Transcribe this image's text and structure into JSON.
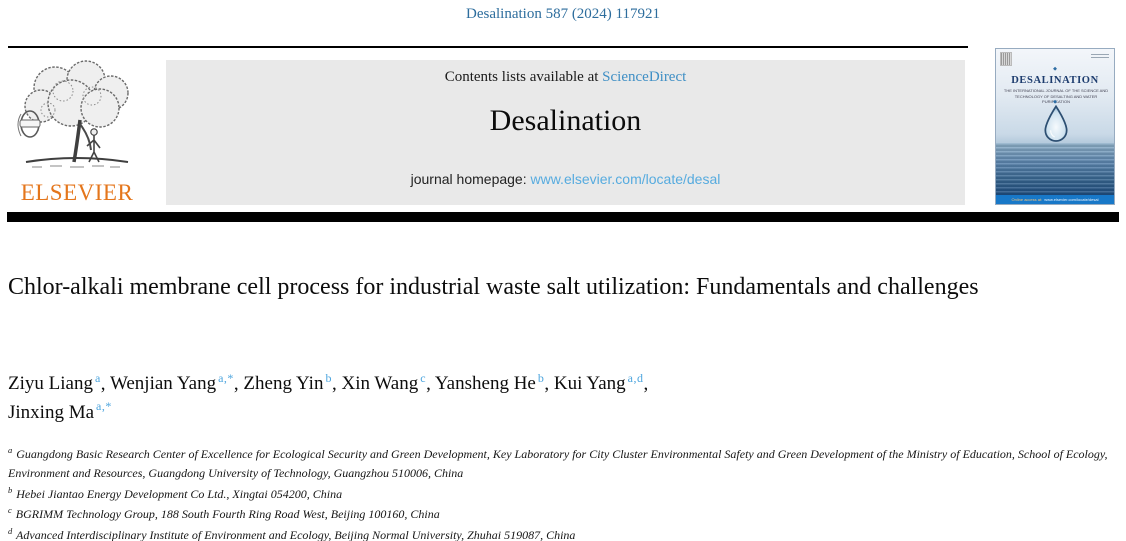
{
  "page": {
    "citation": "Desalination 587 (2024) 117921"
  },
  "header": {
    "contents_prefix": "Contents lists available at ",
    "sciencedirect_link": "ScienceDirect",
    "journal_title": "Desalination",
    "homepage_prefix": "journal homepage: ",
    "homepage_link": "www.elsevier.com/locate/desal",
    "elsevier_wordmark": "ELSEVIER"
  },
  "cover": {
    "title": "DESALINATION",
    "subtitle": "THE INTERNATIONAL JOURNAL OF THE SCIENCE AND TECHNOLOGY OF DESALTING AND WATER PURIFICATION",
    "footer_prefix": "Online access at:",
    "footer_link": "www.elsevier.com/locate/desal",
    "diamond_glyph": "◆"
  },
  "article": {
    "title": "Chlor-alkali membrane cell process for industrial waste salt utilization: Fundamentals and challenges",
    "authors": [
      {
        "name": "Ziyu Liang",
        "sup": "a"
      },
      {
        "name": "Wenjian Yang",
        "sup": "a,*"
      },
      {
        "name": "Zheng Yin",
        "sup": "b"
      },
      {
        "name": "Xin Wang",
        "sup": "c"
      },
      {
        "name": "Yansheng He",
        "sup": "b"
      },
      {
        "name": "Kui Yang",
        "sup": "a,d"
      },
      {
        "name": "Jinxing Ma",
        "sup": "a,*"
      }
    ],
    "affiliations": [
      {
        "label": "a",
        "text": "Guangdong Basic Research Center of Excellence for Ecological Security and Green Development, Key Laboratory for City Cluster Environmental Safety and Green Development of the Ministry of Education, School of Ecology, Environment and Resources, Guangdong University of Technology, Guangzhou 510006, China"
      },
      {
        "label": "b",
        "text": "Hebei Jiantao Energy Development Co Ltd., Xingtai 054200, China"
      },
      {
        "label": "c",
        "text": "BGRIMM Technology Group, 188 South Fourth Ring Road West, Beijing 100160, China"
      },
      {
        "label": "d",
        "text": "Advanced Interdisciplinary Institute of Environment and Ecology, Beijing Normal University, Zhuhai 519087, China"
      }
    ]
  },
  "colors": {
    "citation_blue": "#2d6d9d",
    "sciencedirect_blue": "#3f8fc5",
    "homepage_link_blue": "#56abdf",
    "superscript_blue": "#4da5de",
    "elsevier_orange": "#e4761c",
    "cover_navy": "#1d3c6e",
    "cover_footer_blue": "#1878c8",
    "header_box_gray": "#e9e9e9"
  }
}
